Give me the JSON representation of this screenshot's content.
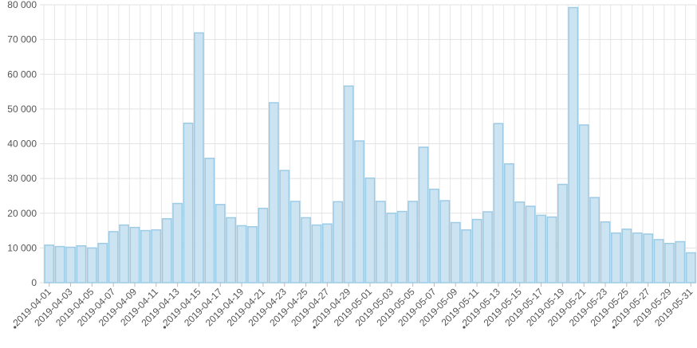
{
  "chart_data": {
    "type": "bar",
    "categories": [
      "2019-04-01",
      null,
      "2019-04-03",
      null,
      "2019-04-05",
      null,
      "2019-04-07",
      null,
      "2019-04-09",
      null,
      "2019-04-11",
      null,
      "2019-04-13",
      null,
      "2019-04-15",
      null,
      "2019-04-17",
      null,
      "2019-04-19",
      null,
      "2019-04-21",
      null,
      "2019-04-23",
      null,
      "2019-04-25",
      null,
      "2019-04-27",
      null,
      "2019-04-29",
      null,
      "2019-05-01",
      null,
      "2019-05-03",
      null,
      "2019-05-05",
      null,
      "2019-05-07",
      null,
      "2019-05-09",
      null,
      "2019-05-11",
      null,
      "2019-05-13",
      null,
      "2019-05-15",
      null,
      "2019-05-17",
      null,
      "2019-05-19",
      null,
      "2019-05-21",
      null,
      "2019-05-23",
      null,
      "2019-05-25",
      null,
      "2019-05-27",
      null,
      "2019-05-29",
      null,
      "2019-05-31"
    ],
    "values": [
      10800,
      10400,
      10200,
      10600,
      10000,
      11300,
      14700,
      16600,
      15900,
      15000,
      15200,
      18400,
      22800,
      45900,
      71900,
      35800,
      22500,
      18700,
      16400,
      16100,
      21400,
      51800,
      32300,
      23400,
      18700,
      16600,
      16900,
      23300,
      56600,
      40800,
      30100,
      23400,
      20000,
      20500,
      23400,
      39000,
      26900,
      23600,
      17300,
      15200,
      18200,
      20400,
      45800,
      34200,
      23200,
      22000,
      19400,
      18900,
      28300,
      79200,
      45400,
      24500,
      17500,
      14300,
      15400,
      14300,
      14000,
      12400,
      11300,
      11800,
      8600
    ],
    "color": "#cce4f2",
    "edge_color": "#9ccbe6",
    "ylim": [
      0,
      80000
    ],
    "yticks": [
      0,
      {
        "value": 10000,
        "label": "10 000"
      },
      {
        "value": 20000,
        "label": "20 000"
      },
      {
        "value": 30000,
        "label": "30 000"
      },
      {
        "value": 40000,
        "label": "40 000"
      },
      {
        "value": 50000,
        "label": "50 000"
      },
      {
        "value": 60000,
        "label": "60 000"
      },
      {
        "value": 70000,
        "label": "70 000"
      },
      {
        "value": 80000,
        "label": "80 000"
      }
    ],
    "grid": true
  }
}
